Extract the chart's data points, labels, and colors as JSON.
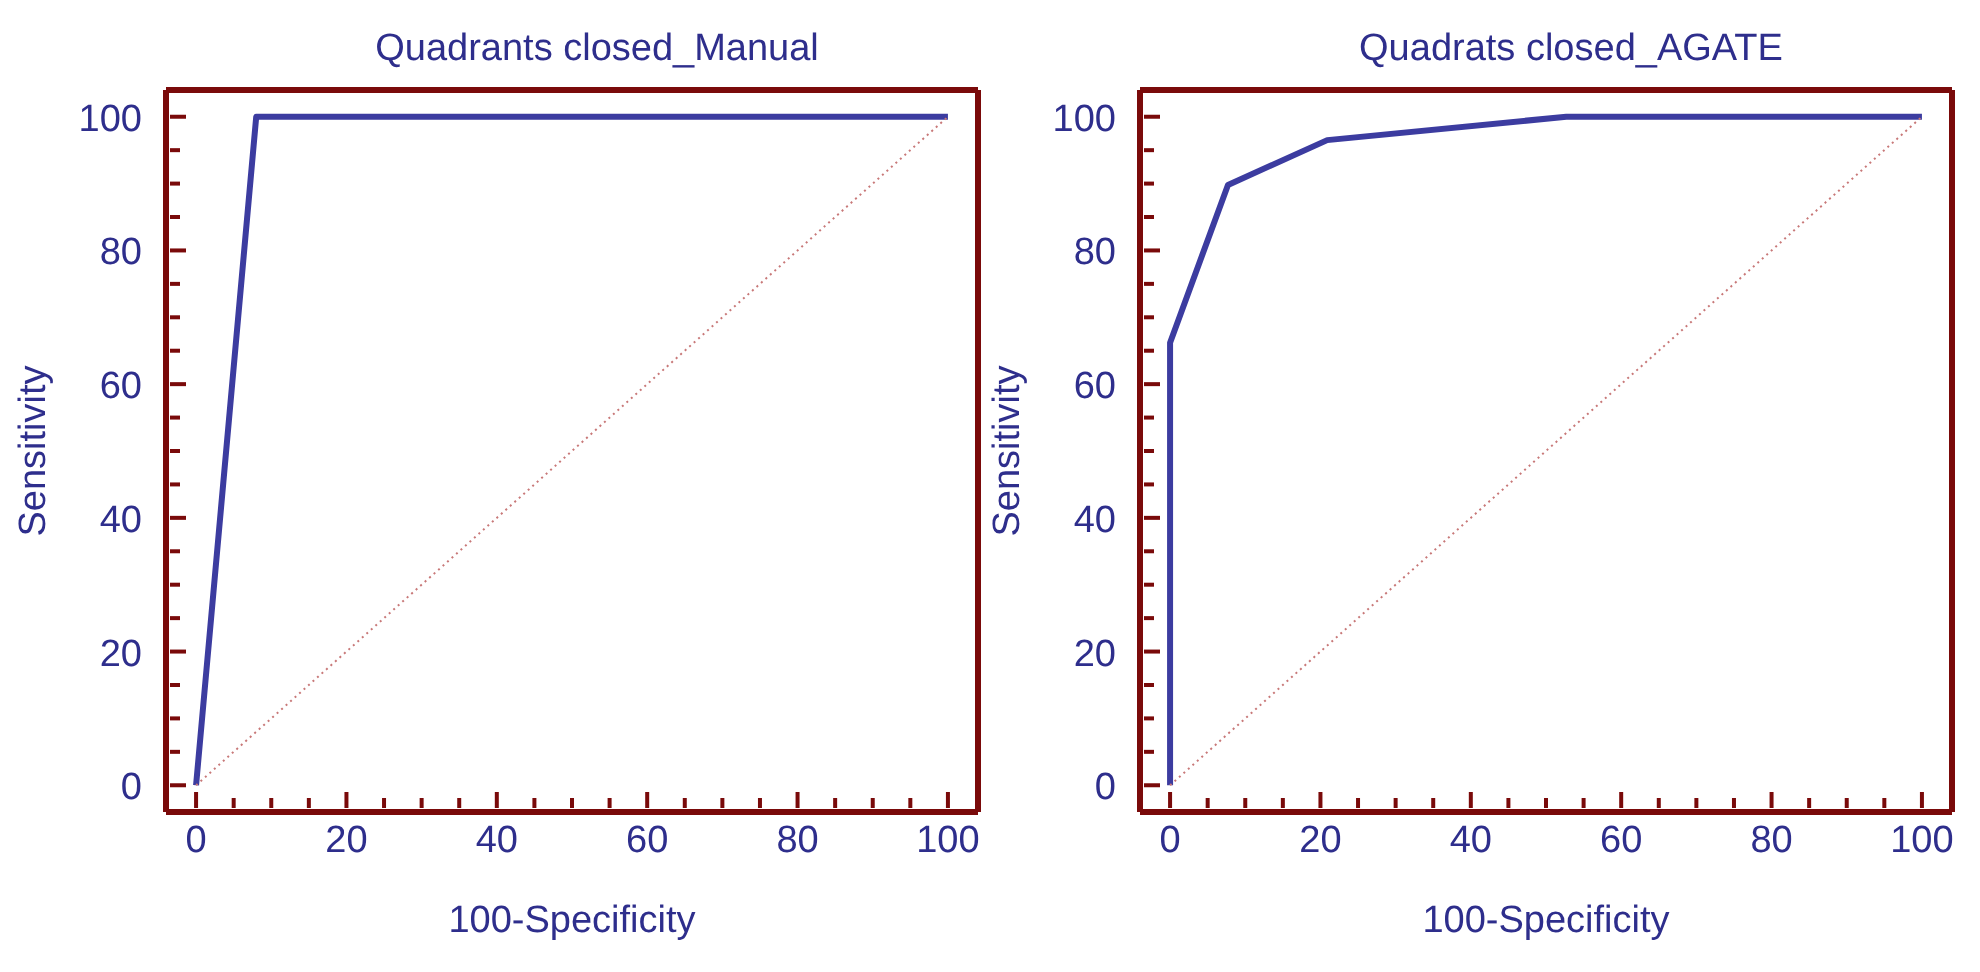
{
  "chart_data": [
    {
      "type": "line",
      "title": "Quadrants closed_Manual",
      "xlabel": "100-Specificity",
      "ylabel": "Sensitivity",
      "xlim": [
        -4,
        104
      ],
      "ylim": [
        -4,
        104
      ],
      "xticks": [
        0,
        {
          "value": 5,
          "label": null
        },
        {
          "value": 10,
          "label": null
        },
        {
          "value": 15,
          "label": null
        },
        20,
        {
          "value": 25,
          "label": null
        },
        {
          "value": 30,
          "label": null
        },
        {
          "value": 35,
          "label": null
        },
        40,
        {
          "value": 45,
          "label": null
        },
        {
          "value": 50,
          "label": null
        },
        {
          "value": 55,
          "label": null
        },
        60,
        {
          "value": 65,
          "label": null
        },
        {
          "value": 70,
          "label": null
        },
        {
          "value": 75,
          "label": null
        },
        80,
        {
          "value": 85,
          "label": null
        },
        {
          "value": 90,
          "label": null
        },
        {
          "value": 95,
          "label": null
        },
        100
      ],
      "yticks": [
        0,
        {
          "value": 5,
          "label": null
        },
        {
          "value": 10,
          "label": null
        },
        {
          "value": 15,
          "label": null
        },
        20,
        {
          "value": 25,
          "label": null
        },
        {
          "value": 30,
          "label": null
        },
        {
          "value": 35,
          "label": null
        },
        40,
        {
          "value": 45,
          "label": null
        },
        {
          "value": 50,
          "label": null
        },
        {
          "value": 55,
          "label": null
        },
        60,
        {
          "value": 65,
          "label": null
        },
        {
          "value": 70,
          "label": null
        },
        {
          "value": 75,
          "label": null
        },
        80,
        {
          "value": 85,
          "label": null
        },
        {
          "value": 90,
          "label": null
        },
        {
          "value": 95,
          "label": null
        },
        100
      ],
      "marker": "none",
      "series": [
        {
          "x": [
            0,
            8,
            100
          ],
          "values": [
            0,
            100,
            100
          ],
          "color": "#3c3ca0",
          "line_style": "solid"
        },
        {
          "x": [
            0,
            100
          ],
          "values": [
            0,
            100
          ],
          "color": "#c87878",
          "line_style": "dotted"
        }
      ]
    },
    {
      "type": "line",
      "title": "Quadrats closed_AGATE",
      "xlabel": "100-Specificity",
      "ylabel": "Sensitivity",
      "xlim": [
        -4,
        104
      ],
      "ylim": [
        -4,
        104
      ],
      "xticks": [
        0,
        {
          "value": 5,
          "label": null
        },
        {
          "value": 10,
          "label": null
        },
        {
          "value": 15,
          "label": null
        },
        20,
        {
          "value": 25,
          "label": null
        },
        {
          "value": 30,
          "label": null
        },
        {
          "value": 35,
          "label": null
        },
        40,
        {
          "value": 45,
          "label": null
        },
        {
          "value": 50,
          "label": null
        },
        {
          "value": 55,
          "label": null
        },
        60,
        {
          "value": 65,
          "label": null
        },
        {
          "value": 70,
          "label": null
        },
        {
          "value": 75,
          "label": null
        },
        80,
        {
          "value": 85,
          "label": null
        },
        {
          "value": 90,
          "label": null
        },
        {
          "value": 95,
          "label": null
        },
        100
      ],
      "yticks": [
        0,
        {
          "value": 5,
          "label": null
        },
        {
          "value": 10,
          "label": null
        },
        {
          "value": 15,
          "label": null
        },
        20,
        {
          "value": 25,
          "label": null
        },
        {
          "value": 30,
          "label": null
        },
        {
          "value": 35,
          "label": null
        },
        40,
        {
          "value": 45,
          "label": null
        },
        {
          "value": 50,
          "label": null
        },
        {
          "value": 55,
          "label": null
        },
        60,
        {
          "value": 65,
          "label": null
        },
        {
          "value": 70,
          "label": null
        },
        {
          "value": 75,
          "label": null
        },
        80,
        {
          "value": 85,
          "label": null
        },
        {
          "value": 90,
          "label": null
        },
        {
          "value": 95,
          "label": null
        },
        100
      ],
      "marker": "none",
      "series": [
        {
          "x": [
            0,
            0,
            7.7,
            20.9,
            52.7,
            100
          ],
          "values": [
            0,
            66.2,
            89.8,
            96.5,
            100,
            100
          ],
          "color": "#3c3ca0",
          "line_style": "solid"
        },
        {
          "x": [
            0,
            100
          ],
          "values": [
            0,
            100
          ],
          "color": "#c87878",
          "line_style": "dotted"
        }
      ]
    }
  ]
}
